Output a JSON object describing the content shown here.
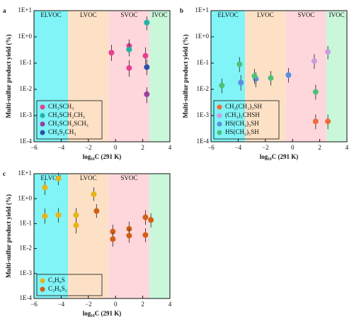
{
  "chart_data": [
    {
      "type": "scatter",
      "panel_label": "a",
      "xlabel": "log₁₀C (291 K)",
      "ylabel": "Multi-sulfur product yield (%)",
      "yscale": "log",
      "legend": "lower left",
      "xlim": [
        -6,
        4
      ],
      "xticks": [
        {
          "value": -6,
          "label": "−6"
        },
        {
          "value": -4,
          "label": "−4"
        },
        {
          "value": -2,
          "label": "−2"
        },
        0,
        2,
        4
      ],
      "ylim": [
        0.0001,
        10
      ],
      "yticks": [
        {
          "value": 0.0001,
          "label": "1E-4"
        },
        {
          "value": 0.001,
          "label": "1E-3"
        },
        {
          "value": 0.01,
          "label": "1E-2"
        },
        {
          "value": 0.1,
          "label": "1E-1"
        },
        {
          "value": 1,
          "label": "1E+0"
        },
        {
          "value": 10,
          "label": "1E+1"
        }
      ],
      "regions": [
        {
          "name": "ELVOC",
          "range": [
            -6,
            -3.5
          ],
          "color": "#80f4f6"
        },
        {
          "name": "LVOC",
          "range": [
            -3.5,
            -0.5
          ],
          "color": "#fde1c6"
        },
        {
          "name": "SVOC",
          "range": [
            -0.5,
            2.5
          ],
          "color": "#fdd7dc"
        },
        {
          "name": "IVOC",
          "range": [
            2.5,
            4
          ],
          "color": "#c9f7da"
        }
      ],
      "series": [
        {
          "name": "CH₃SCH₃",
          "color": "#e83f8f",
          "x": [
            -0.3,
            1.0,
            1.0,
            2.2
          ],
          "values": [
            0.25,
            0.45,
            0.065,
            0.19
          ],
          "lower": [
            0.12,
            0.25,
            0.03,
            0.09
          ],
          "upper": [
            0.5,
            0.8,
            0.13,
            0.4
          ]
        },
        {
          "name": "CH₃SCH₂CH₃",
          "color": "#1fb5a8",
          "x": [
            1.0,
            2.3
          ],
          "values": [
            0.33,
            3.5
          ],
          "lower": [
            0.18,
            1.8
          ],
          "upper": [
            0.6,
            6
          ]
        },
        {
          "name": "CH₃SCH₂SCH₃",
          "color": "#9b3fa0",
          "x": [
            2.3
          ],
          "values": [
            0.0065
          ],
          "lower": [
            0.003
          ],
          "upper": [
            0.012
          ]
        },
        {
          "name": "CH₃S₂CH₃",
          "color": "#2d4fa8",
          "x": [
            2.3
          ],
          "values": [
            0.07
          ],
          "lower": [
            0.035
          ],
          "upper": [
            0.14
          ]
        }
      ]
    },
    {
      "type": "scatter",
      "panel_label": "b",
      "xlabel": "log₁₀C (291 K)",
      "ylabel": "Multi-sulfur product yield (%)",
      "yscale": "log",
      "legend": "lower left",
      "xlim": [
        -6,
        4
      ],
      "xticks": [
        {
          "value": -6,
          "label": "−6"
        },
        {
          "value": -4,
          "label": "−4"
        },
        {
          "value": -2,
          "label": "−2"
        },
        0,
        2,
        4
      ],
      "ylim": [
        0.0001,
        10
      ],
      "yticks": [
        {
          "value": 0.0001,
          "label": "1E-4"
        },
        {
          "value": 0.001,
          "label": "1E-3"
        },
        {
          "value": 0.01,
          "label": "1E-2"
        },
        {
          "value": 0.1,
          "label": "1E-1"
        },
        {
          "value": 1,
          "label": "1E+0"
        },
        {
          "value": 10,
          "label": "1E+1"
        }
      ],
      "regions": [
        {
          "name": "ELVOC",
          "range": [
            -6,
            -3.5
          ],
          "color": "#80f4f6"
        },
        {
          "name": "LVOC",
          "range": [
            -3.5,
            -0.5
          ],
          "color": "#fde1c6"
        },
        {
          "name": "SVOC",
          "range": [
            -0.5,
            2.5
          ],
          "color": "#fdd7dc"
        },
        {
          "name": "IVOC",
          "range": [
            2.5,
            4
          ],
          "color": "#c9f7da"
        }
      ],
      "series": [
        {
          "name": "CH₃(CH₂)₃SH",
          "color": "#f06a3c",
          "x": [
            1.7,
            2.6
          ],
          "values": [
            0.0006,
            0.0006
          ],
          "lower": [
            0.0003,
            0.0003
          ],
          "upper": [
            0.0011,
            0.0011
          ]
        },
        {
          "name": "(CH₃)₂CHSH",
          "color": "#c79ee0",
          "x": [
            1.6,
            2.6
          ],
          "values": [
            0.12,
            0.27
          ],
          "lower": [
            0.06,
            0.14
          ],
          "upper": [
            0.22,
            0.45
          ]
        },
        {
          "name": "HS(CH₂)₃SH",
          "color": "#5b8fe0",
          "x": [
            -3.8,
            -2.7,
            -0.3
          ],
          "values": [
            0.018,
            0.025,
            0.035
          ],
          "lower": [
            0.009,
            0.012,
            0.018
          ],
          "upper": [
            0.035,
            0.045,
            0.065
          ]
        },
        {
          "name": "HS(CH₂)₅SH",
          "color": "#4fc07a",
          "x": [
            -5.2,
            -3.9,
            -2.8,
            -1.6,
            1.7
          ],
          "values": [
            0.014,
            0.09,
            0.032,
            0.027,
            0.008
          ],
          "lower": [
            0.007,
            0.045,
            0.016,
            0.014,
            0.004
          ],
          "upper": [
            0.026,
            0.17,
            0.06,
            0.05,
            0.015
          ]
        }
      ]
    },
    {
      "type": "scatter",
      "panel_label": "c",
      "xlabel": "log₁₀C (291 K)",
      "ylabel": "Multi-sulfur product yield (%)",
      "yscale": "log",
      "legend": "lower left",
      "xlim": [
        -6,
        4
      ],
      "xticks": [
        {
          "value": -6,
          "label": "−6"
        },
        {
          "value": -4,
          "label": "−4"
        },
        {
          "value": -2,
          "label": "−2"
        },
        0,
        2,
        4
      ],
      "ylim": [
        0.0001,
        10
      ],
      "yticks": [
        {
          "value": 0.0001,
          "label": "1E-4"
        },
        {
          "value": 0.001,
          "label": "1E-3"
        },
        {
          "value": 0.01,
          "label": "1E-2"
        },
        {
          "value": 0.1,
          "label": "1E-1"
        },
        {
          "value": 1,
          "label": "1E+0"
        },
        {
          "value": 10,
          "label": "1E+1"
        }
      ],
      "regions": [
        {
          "name": "ELVOC",
          "range": [
            -6,
            -3.5
          ],
          "color": "#80f4f6"
        },
        {
          "name": "LVOC",
          "range": [
            -3.5,
            -0.5
          ],
          "color": "#fde1c6"
        },
        {
          "name": "SVOC",
          "range": [
            -0.5,
            2.5
          ],
          "color": "#fdd7dc"
        },
        {
          "name": null,
          "range": [
            2.5,
            4
          ],
          "color": "#c9f7da"
        }
      ],
      "series": [
        {
          "name": "C₃H₆S",
          "color": "#e8b418",
          "x": [
            -5.2,
            -5.2,
            -4.2,
            -4.2,
            -2.9,
            -2.9,
            -1.6
          ],
          "values": [
            2.8,
            0.2,
            6.5,
            0.22,
            0.22,
            0.085,
            1.5
          ],
          "lower": [
            1.4,
            0.1,
            3.5,
            0.11,
            0.11,
            0.04,
            0.8
          ],
          "upper": [
            5,
            0.4,
            11,
            0.42,
            0.42,
            0.16,
            2.8
          ]
        },
        {
          "name": "C₃H₆S₂",
          "color": "#d45f12",
          "x": [
            -1.4,
            -0.2,
            -0.2,
            1.0,
            1.0,
            2.2,
            2.2,
            2.6
          ],
          "values": [
            0.32,
            0.048,
            0.024,
            0.062,
            0.033,
            0.18,
            0.035,
            0.14
          ],
          "lower": [
            0.17,
            0.025,
            0.012,
            0.032,
            0.017,
            0.09,
            0.018,
            0.07
          ],
          "upper": [
            0.6,
            0.09,
            0.045,
            0.12,
            0.065,
            0.35,
            0.065,
            0.26
          ]
        }
      ]
    }
  ]
}
